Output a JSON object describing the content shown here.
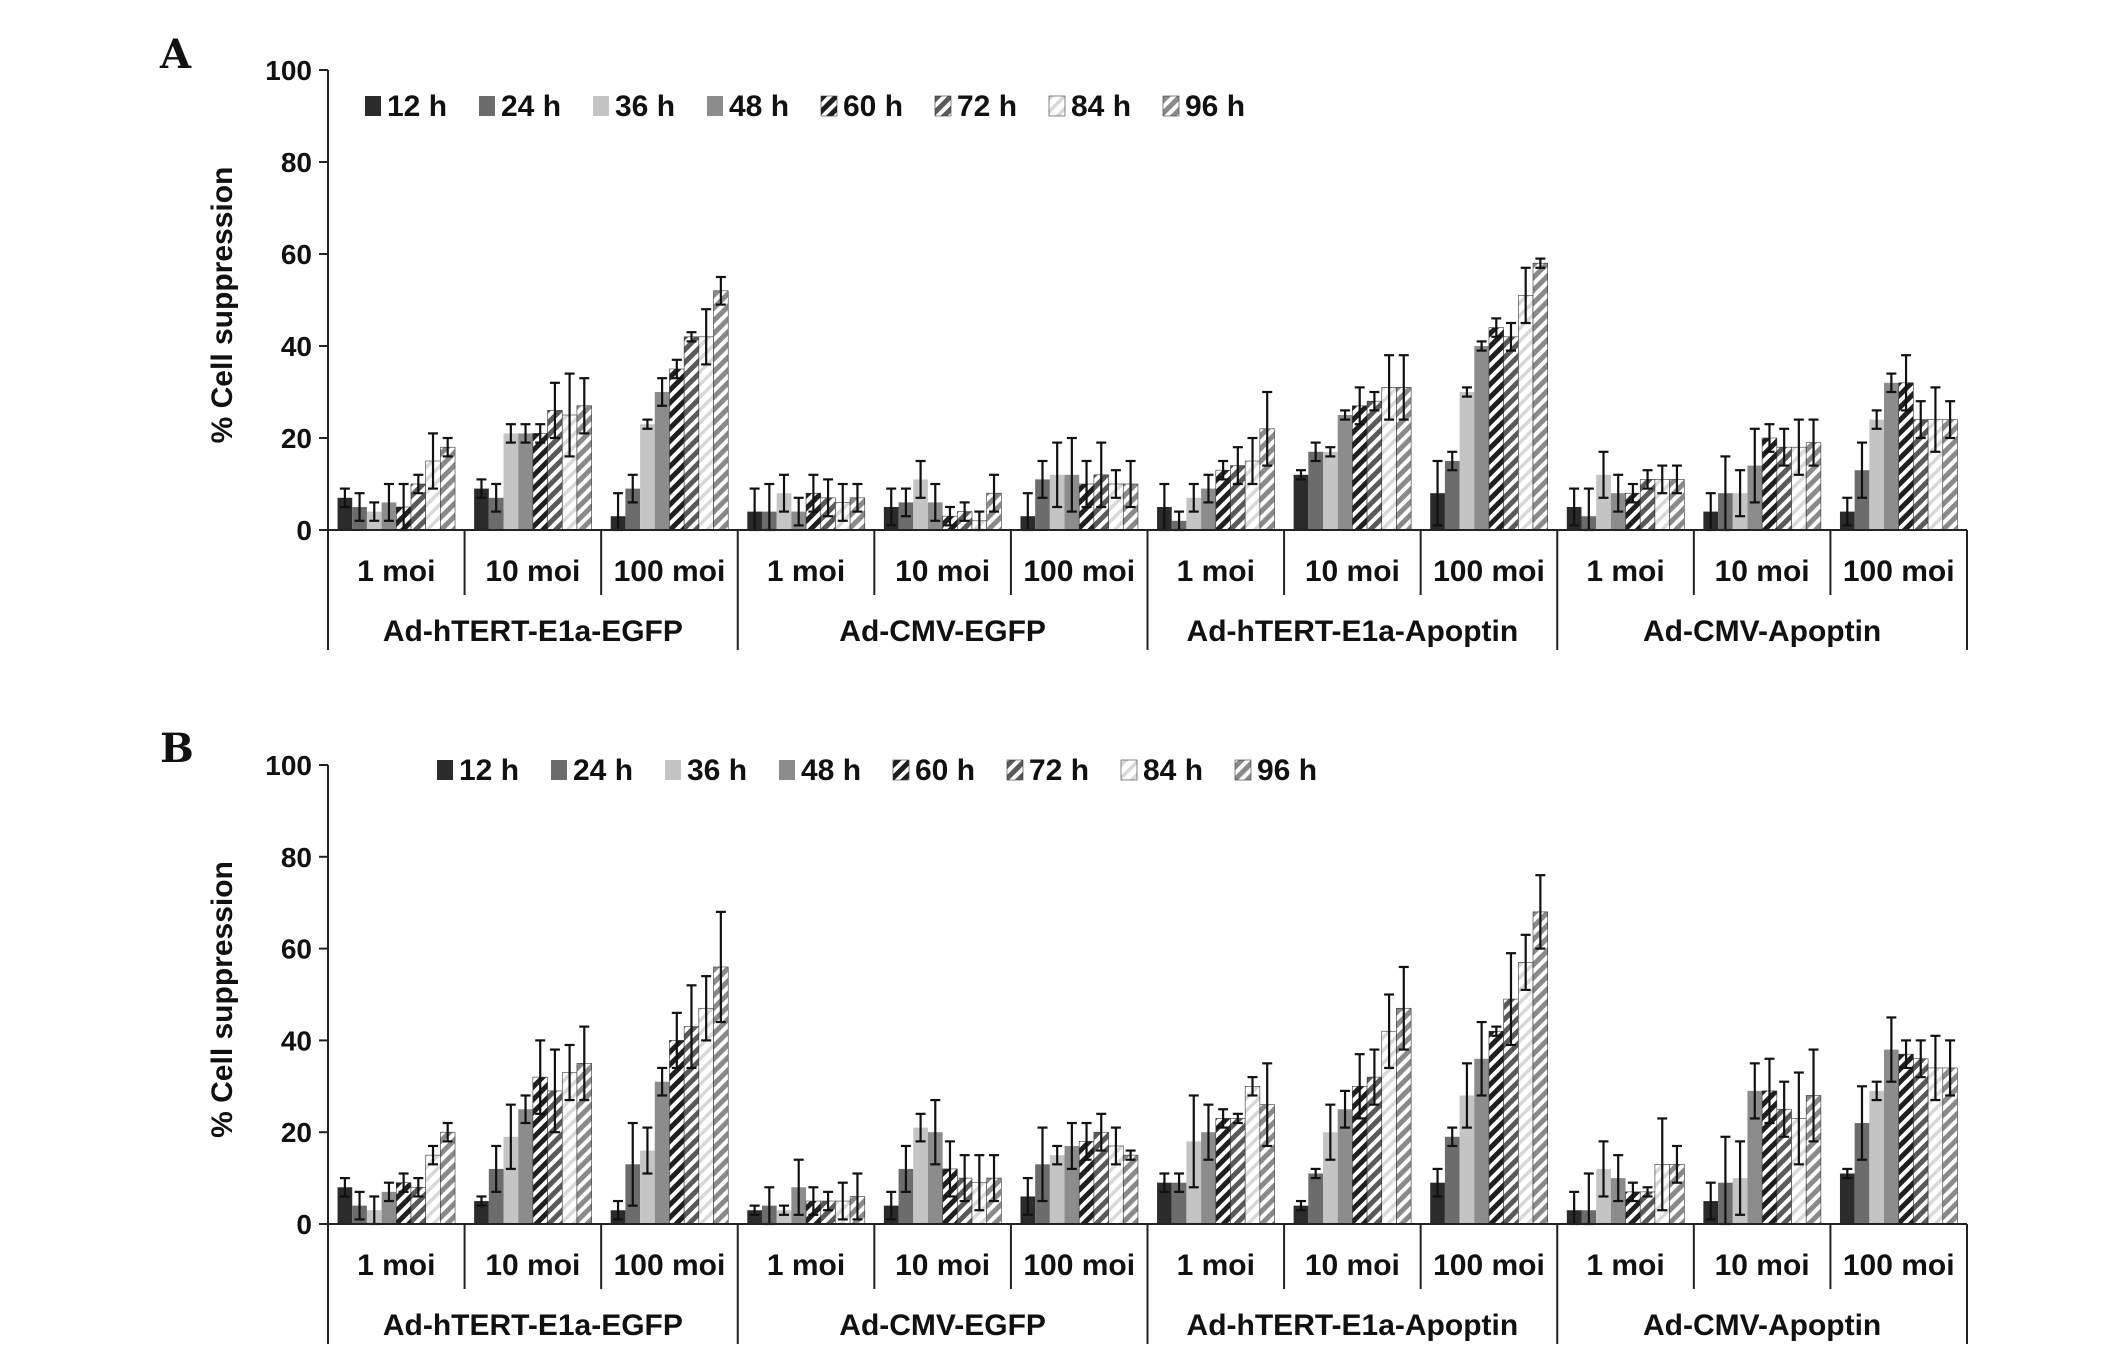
{
  "figure": {
    "series_names": [
      "12 h",
      "24 h",
      "36 h",
      "48 h",
      "60 h",
      "72 h",
      "84 h",
      "96 h"
    ],
    "series_styles": [
      {
        "fill": "#2b2b2b",
        "pattern": "solid"
      },
      {
        "fill": "#6c6c6c",
        "pattern": "solid"
      },
      {
        "fill": "#c4c4c4",
        "pattern": "solid"
      },
      {
        "fill": "#8c8c8c",
        "pattern": "solid"
      },
      {
        "fill": "#1f1f1f",
        "pattern": "stripe-dark"
      },
      {
        "fill": "#5a5a5a",
        "pattern": "stripe-mid"
      },
      {
        "fill": "#d8d8d8",
        "pattern": "stripe-light"
      },
      {
        "fill": "#8a8a8a",
        "pattern": "stripe-grey"
      }
    ]
  },
  "chart_data": [
    {
      "type": "bar",
      "panel": "A",
      "ylabel": "% Cell suppression",
      "ylim": [
        0,
        100
      ],
      "yticks": [
        0,
        20,
        40,
        60,
        80,
        100
      ],
      "legend": "top-left",
      "groups": [
        "Ad-hTERT-E1a-EGFP",
        "Ad-CMV-EGFP",
        "Ad-hTERT-E1a-Apoptin",
        "Ad-CMV-Apoptin"
      ],
      "subgroups": [
        "1 moi",
        "10 moi",
        "100 moi"
      ],
      "values": [
        [
          [
            7,
            5,
            4,
            6,
            5,
            10,
            15,
            18
          ],
          [
            9,
            7,
            21,
            21,
            21,
            26,
            25,
            27
          ],
          [
            3,
            9,
            23,
            30,
            35,
            42,
            42,
            52
          ]
        ],
        [
          [
            4,
            4,
            8,
            4,
            8,
            7,
            6,
            7
          ],
          [
            5,
            6,
            11,
            6,
            3,
            4,
            2,
            8
          ],
          [
            3,
            11,
            12,
            12,
            10,
            12,
            10,
            10
          ]
        ],
        [
          [
            5,
            2,
            7,
            9,
            13,
            14,
            15,
            22
          ],
          [
            12,
            17,
            17,
            25,
            27,
            28,
            31,
            31
          ],
          [
            8,
            15,
            30,
            40,
            44,
            42,
            51,
            58
          ]
        ],
        [
          [
            5,
            3,
            12,
            8,
            8,
            11,
            11,
            11
          ],
          [
            4,
            8,
            8,
            14,
            20,
            18,
            18,
            19
          ],
          [
            4,
            13,
            24,
            32,
            32,
            24,
            24,
            24
          ]
        ]
      ],
      "errors": [
        [
          [
            2,
            3,
            2,
            4,
            5,
            2,
            6,
            2
          ],
          [
            2,
            3,
            2,
            2,
            2,
            6,
            9,
            6
          ],
          [
            5,
            3,
            1,
            3,
            2,
            1,
            6,
            3
          ]
        ],
        [
          [
            5,
            6,
            4,
            3,
            4,
            4,
            4,
            3
          ],
          [
            4,
            3,
            4,
            4,
            2,
            2,
            2,
            4
          ],
          [
            5,
            4,
            7,
            8,
            5,
            7,
            3,
            5
          ]
        ],
        [
          [
            5,
            2,
            3,
            3,
            2,
            4,
            5,
            8
          ],
          [
            1,
            2,
            1,
            1,
            4,
            2,
            7,
            7
          ],
          [
            7,
            2,
            1,
            1,
            2,
            3,
            6,
            1
          ]
        ],
        [
          [
            4,
            6,
            5,
            4,
            2,
            2,
            3,
            3
          ],
          [
            4,
            8,
            5,
            8,
            3,
            4,
            6,
            5
          ],
          [
            3,
            6,
            2,
            2,
            6,
            4,
            7,
            4
          ]
        ]
      ]
    },
    {
      "type": "bar",
      "panel": "B",
      "ylabel": "% Cell suppression",
      "ylim": [
        0,
        100
      ],
      "yticks": [
        0,
        20,
        40,
        60,
        80,
        100
      ],
      "legend": "top-center",
      "groups": [
        "Ad-hTERT-E1a-EGFP",
        "Ad-CMV-EGFP",
        "Ad-hTERT-E1a-Apoptin",
        "Ad-CMV-Apoptin"
      ],
      "subgroups": [
        "1 moi",
        "10 moi",
        "100 moi"
      ],
      "values": [
        [
          [
            8,
            4,
            3,
            7,
            9,
            8,
            15,
            20
          ],
          [
            5,
            12,
            19,
            25,
            32,
            29,
            33,
            35
          ],
          [
            3,
            13,
            16,
            31,
            40,
            43,
            47,
            56
          ]
        ],
        [
          [
            3,
            4,
            3,
            8,
            5,
            5,
            5,
            6
          ],
          [
            4,
            12,
            21,
            20,
            12,
            10,
            9,
            10
          ],
          [
            6,
            13,
            15,
            17,
            18,
            20,
            17,
            15
          ]
        ],
        [
          [
            9,
            9,
            18,
            20,
            23,
            23,
            30,
            26
          ],
          [
            4,
            11,
            20,
            25,
            30,
            32,
            42,
            47
          ],
          [
            9,
            19,
            28,
            36,
            42,
            49,
            57,
            68
          ]
        ],
        [
          [
            3,
            3,
            12,
            10,
            7,
            7,
            13,
            13
          ],
          [
            5,
            9,
            10,
            29,
            29,
            25,
            23,
            28
          ],
          [
            11,
            22,
            29,
            38,
            37,
            36,
            34,
            34
          ]
        ]
      ],
      "errors": [
        [
          [
            2,
            3,
            3,
            2,
            2,
            2,
            2,
            2
          ],
          [
            1,
            5,
            7,
            3,
            8,
            9,
            6,
            8
          ],
          [
            2,
            9,
            5,
            3,
            6,
            9,
            7,
            12
          ]
        ],
        [
          [
            1,
            4,
            1,
            6,
            3,
            2,
            4,
            5
          ],
          [
            3,
            5,
            3,
            7,
            6,
            5,
            6,
            5
          ],
          [
            4,
            8,
            2,
            5,
            4,
            4,
            4,
            1
          ]
        ],
        [
          [
            2,
            2,
            10,
            6,
            2,
            1,
            2,
            9
          ],
          [
            1,
            1,
            6,
            4,
            7,
            6,
            8,
            9
          ],
          [
            3,
            2,
            7,
            8,
            1,
            10,
            6,
            8
          ]
        ],
        [
          [
            4,
            8,
            6,
            5,
            2,
            1,
            10,
            4
          ],
          [
            4,
            10,
            8,
            6,
            7,
            6,
            10,
            10
          ],
          [
            1,
            8,
            2,
            7,
            3,
            4,
            7,
            6
          ]
        ]
      ]
    }
  ],
  "panel_letters": [
    "A",
    "B"
  ]
}
